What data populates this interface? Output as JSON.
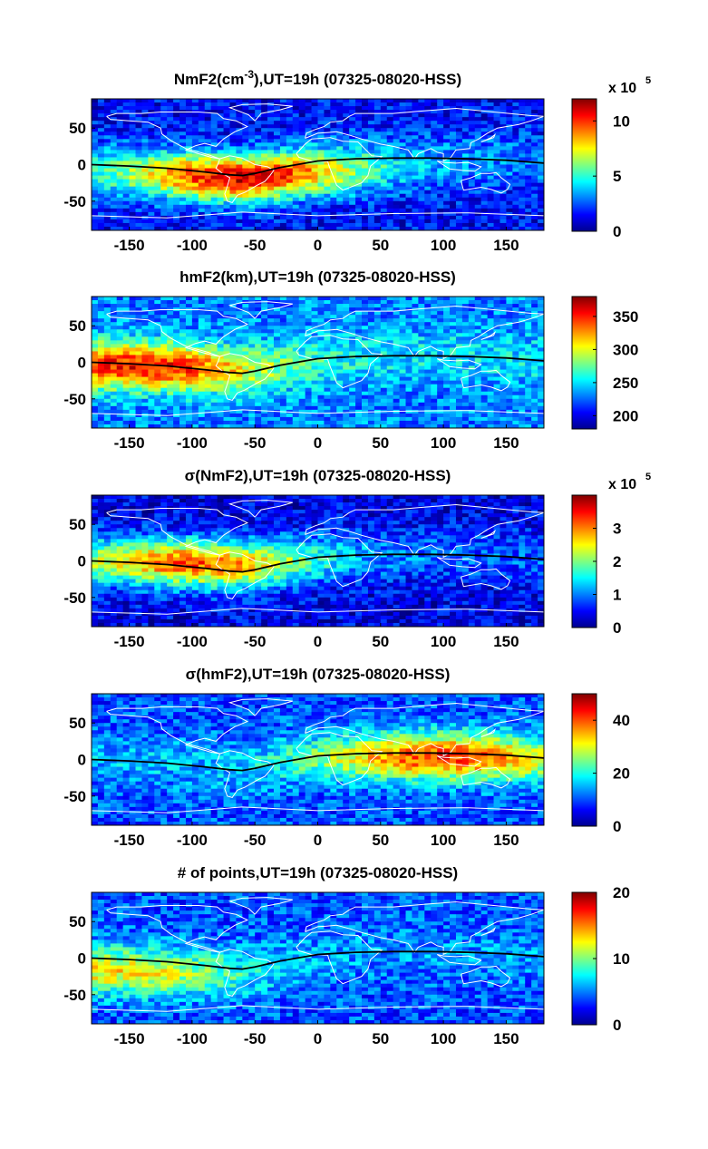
{
  "chart_data": [
    {
      "type": "heatmap",
      "title": "NmF2(cm⁻³),UT=19h (07325-08020-HSS)",
      "title_parts": [
        "NmF2(cm",
        "-3",
        "),UT=19h (07325-08020-HSS)"
      ],
      "xlim": [
        -180,
        180
      ],
      "ylim": [
        -90,
        90
      ],
      "xticks": [
        -150,
        -100,
        -50,
        0,
        50,
        100,
        150
      ],
      "yticks": [
        50,
        0,
        -50
      ],
      "colorbar": {
        "range": [
          0,
          1200000
        ],
        "ticks": [
          0,
          5,
          10
        ],
        "tick_values": [
          0,
          500000,
          1000000
        ],
        "multiplier_text": "x 10",
        "multiplier_exp": "5"
      },
      "field": {
        "peak_value": 1200000,
        "peak_lon": -60,
        "peak_lat": -15,
        "background": 150000
      }
    },
    {
      "type": "heatmap",
      "title": "hmF2(km),UT=19h (07325-08020-HSS)",
      "xlim": [
        -180,
        180
      ],
      "ylim": [
        -90,
        90
      ],
      "xticks": [
        -150,
        -100,
        -50,
        0,
        50,
        100,
        150
      ],
      "yticks": [
        50,
        0,
        -50
      ],
      "colorbar": {
        "range": [
          180,
          380
        ],
        "ticks": [
          200,
          250,
          300,
          350
        ]
      },
      "field": {
        "peak_value": 370,
        "peak_lon": -140,
        "peak_lat": -5,
        "background": 230
      }
    },
    {
      "type": "heatmap",
      "title": "σ(NmF2),UT=19h (07325-08020-HSS)",
      "xlim": [
        -180,
        180
      ],
      "ylim": [
        -90,
        90
      ],
      "xticks": [
        -150,
        -100,
        -50,
        0,
        50,
        100,
        150
      ],
      "yticks": [
        50,
        0,
        -50
      ],
      "colorbar": {
        "range": [
          0,
          400000
        ],
        "ticks": [
          0,
          1,
          2,
          3
        ],
        "tick_values": [
          0,
          100000,
          200000,
          300000
        ],
        "multiplier_text": "x 10",
        "multiplier_exp": "5"
      },
      "field": {
        "peak_value": 350000,
        "peak_lon": -100,
        "peak_lat": 0,
        "background": 40000
      }
    },
    {
      "type": "heatmap",
      "title": "σ(hmF2),UT=19h (07325-08020-HSS)",
      "xlim": [
        -180,
        180
      ],
      "ylim": [
        -90,
        90
      ],
      "xticks": [
        -150,
        -100,
        -50,
        0,
        50,
        100,
        150
      ],
      "yticks": [
        50,
        0,
        -50
      ],
      "colorbar": {
        "range": [
          0,
          50
        ],
        "ticks": [
          0,
          20,
          40
        ]
      },
      "field": {
        "peak_value": 45,
        "peak_lon": 100,
        "peak_lat": 0,
        "background": 10
      }
    },
    {
      "type": "heatmap",
      "title": "# of points,UT=19h (07325-08020-HSS)",
      "xlim": [
        -180,
        180
      ],
      "ylim": [
        -90,
        90
      ],
      "xticks": [
        -150,
        -100,
        -50,
        0,
        50,
        100,
        150
      ],
      "yticks": [
        50,
        0,
        -50
      ],
      "colorbar": {
        "range": [
          0,
          20
        ],
        "ticks": [
          0,
          10,
          20
        ]
      },
      "field": {
        "peak_value": 14,
        "peak_lon": -160,
        "peak_lat": -20,
        "background": 4
      }
    }
  ],
  "magnetic_equator": {
    "lon": [
      -180,
      -150,
      -120,
      -90,
      -70,
      -60,
      -50,
      -30,
      0,
      30,
      60,
      90,
      120,
      150,
      180
    ],
    "lat": [
      0,
      -2,
      -5,
      -10,
      -14,
      -15,
      -12,
      -4,
      5,
      8,
      9,
      9,
      8,
      6,
      2
    ]
  },
  "colors": {
    "coastline": "#ffffff",
    "equator": "#000000",
    "frame": "#000000"
  }
}
